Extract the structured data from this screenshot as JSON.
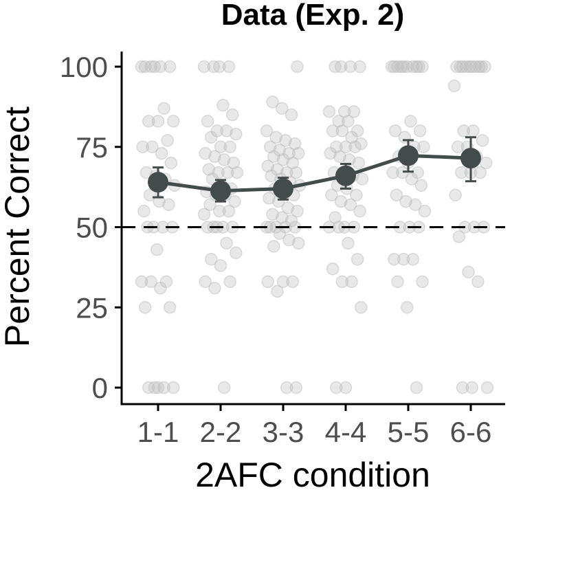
{
  "chart_data": {
    "type": "line",
    "title": "Data (Exp. 2)",
    "xlabel": "2AFC condition",
    "ylabel": "Percent Correct",
    "categories": [
      "1-1",
      "2-2",
      "3-3",
      "4-4",
      "5-5",
      "6-6"
    ],
    "ylim": [
      -5,
      105
    ],
    "yticks": [
      0,
      25,
      50,
      75,
      100
    ],
    "reference_line": 50,
    "grid": false,
    "legend": "none",
    "series": [
      {
        "values": [
          64,
          61.3,
          62,
          66,
          72.3,
          71.5
        ],
        "error_low": [
          59.3,
          58,
          58.6,
          62,
          67.3,
          64.3
        ],
        "error_high": [
          68.6,
          64.7,
          65.4,
          69.7,
          77.1,
          78
        ],
        "color": "#434b4b"
      }
    ],
    "points": [
      [
        100,
        100,
        100,
        100,
        100,
        100,
        87,
        83,
        83,
        83,
        77,
        75,
        75,
        73,
        70,
        67,
        66,
        65,
        63,
        60,
        58,
        57,
        55,
        50,
        50,
        50,
        50,
        43,
        33,
        33,
        33,
        31,
        25,
        25,
        0,
        0,
        0,
        0,
        0
      ],
      [
        100,
        100,
        100,
        100,
        88,
        85,
        83,
        80,
        80,
        79,
        78,
        75,
        75,
        73,
        72,
        71,
        70,
        68,
        67,
        67,
        67,
        65,
        63,
        62,
        61,
        60,
        60,
        58,
        57,
        55,
        55,
        54,
        50,
        50,
        50,
        50,
        50,
        45,
        42,
        40,
        38,
        33,
        33,
        31,
        0
      ],
      [
        100,
        89,
        87,
        85,
        80,
        78,
        77,
        76,
        75,
        74,
        73,
        73,
        72,
        71,
        70,
        69,
        68,
        67,
        67,
        66,
        65,
        64,
        63,
        62,
        61,
        60,
        59,
        58,
        56,
        55,
        54,
        53,
        52,
        50,
        50,
        50,
        50,
        50,
        48,
        46,
        45,
        44,
        33,
        33,
        33,
        30,
        0,
        0
      ],
      [
        100,
        100,
        100,
        100,
        86,
        86,
        86,
        83,
        83,
        80,
        80,
        80,
        78,
        76,
        75,
        75,
        75,
        73,
        72,
        71,
        70,
        67,
        67,
        66,
        65,
        63,
        62,
        60,
        60,
        58,
        57,
        55,
        53,
        50,
        50,
        50,
        50,
        45,
        40,
        37,
        33,
        33,
        25,
        0,
        0
      ],
      [
        100,
        100,
        100,
        100,
        100,
        100,
        100,
        100,
        100,
        100,
        83,
        80,
        80,
        78,
        75,
        75,
        72,
        70,
        67,
        67,
        67,
        65,
        63,
        60,
        58,
        57,
        55,
        50,
        50,
        50,
        40,
        40,
        40,
        33,
        33,
        25,
        0
      ],
      [
        100,
        100,
        100,
        100,
        100,
        100,
        100,
        100,
        100,
        100,
        94,
        80,
        80,
        77,
        75,
        75,
        72,
        70,
        67,
        67,
        67,
        60,
        50,
        50,
        50,
        47,
        36,
        33,
        0,
        0,
        0
      ]
    ],
    "point_color": "#bdbdbd"
  }
}
